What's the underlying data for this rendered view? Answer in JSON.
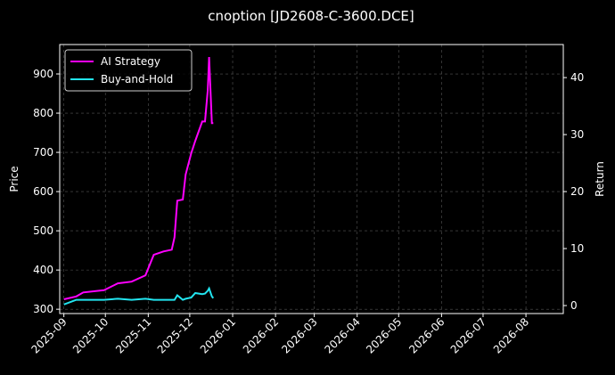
{
  "chart_data": {
    "type": "line",
    "title": "cnoption [JD2608-C-3600.DCE]",
    "ylabel": "Price",
    "y2label": "Return",
    "x": [
      "2025-09-01",
      "2025-09-10",
      "2025-09-15",
      "2025-09-30",
      "2025-10-10",
      "2025-10-20",
      "2025-10-30",
      "2025-11-05",
      "2025-11-12",
      "2025-11-18",
      "2025-11-20",
      "2025-11-22",
      "2025-11-26",
      "2025-11-28",
      "2025-12-02",
      "2025-12-05",
      "2025-12-10",
      "2025-12-12",
      "2025-12-14",
      "2025-12-15",
      "2025-12-17",
      "2025-12-18"
    ],
    "series": [
      {
        "name": "AI Strategy",
        "color": "#ff00ff",
        "axis": "y2",
        "values": [
          1.1,
          1.6,
          2.3,
          2.7,
          3.9,
          4.2,
          5.3,
          8.9,
          9.5,
          9.8,
          12,
          18.4,
          18.6,
          23,
          26.7,
          28.9,
          32.3,
          32.3,
          37.8,
          43.6,
          32,
          32
        ]
      },
      {
        "name": "Buy-and-Hold",
        "color": "#22e5f0",
        "axis": "y2",
        "values": [
          0.2,
          1.0,
          1.0,
          1.0,
          1.2,
          1.0,
          1.2,
          1.0,
          1.0,
          1.0,
          1.0,
          1.8,
          1.0,
          1.2,
          1.4,
          2.2,
          2.0,
          2.1,
          2.6,
          3.0,
          1.6,
          1.3
        ]
      }
    ],
    "xlim": [
      "2025-08-29",
      "2026-08-28"
    ],
    "xticks": [
      {
        "value": "2025-09-01",
        "label": "2025-09"
      },
      {
        "value": "2025-10-01",
        "label": "2025-10"
      },
      {
        "value": "2025-11-01",
        "label": "2025-11"
      },
      {
        "value": "2025-12-01",
        "label": "2025-12"
      },
      {
        "value": "2026-01-01",
        "label": "2026-01"
      },
      {
        "value": "2026-02-01",
        "label": "2026-02"
      },
      {
        "value": "2026-03-01",
        "label": "2026-03"
      },
      {
        "value": "2026-04-01",
        "label": "2026-04"
      },
      {
        "value": "2026-05-01",
        "label": "2026-05"
      },
      {
        "value": "2026-06-01",
        "label": "2026-06"
      },
      {
        "value": "2026-07-01",
        "label": "2026-07"
      },
      {
        "value": "2026-08-01",
        "label": "2026-08"
      }
    ],
    "ylim": [
      289,
      975
    ],
    "yticks": [
      300,
      400,
      500,
      600,
      700,
      800,
      900
    ],
    "y2lim": [
      -1.4,
      45.8
    ],
    "y2ticks": [
      0,
      10,
      20,
      30,
      40
    ],
    "grid": true,
    "legend": "upper left"
  }
}
